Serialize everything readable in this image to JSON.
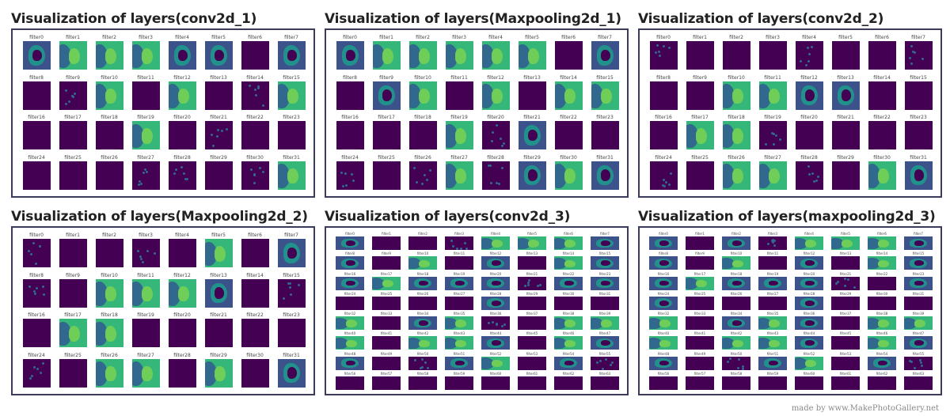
{
  "colors": {
    "empty": "#440154",
    "bright": "#35b779",
    "mid": "#31688e",
    "teal": "#21918c",
    "dark": "#3b528b",
    "light": "#6ece58"
  },
  "panels": [
    {
      "title": "Visualization of layers(conv2d_1)",
      "labels": [
        "filter0",
        "filter1",
        "filter2",
        "filter3",
        "filter4",
        "filter5",
        "filter6",
        "filter7",
        "filter8",
        "filter9",
        "filter10",
        "filter11",
        "filter12",
        "filter13",
        "filter14",
        "filter15",
        "filter16",
        "filter17",
        "filter18",
        "filter19",
        "filter20",
        "filter21",
        "filter22",
        "filter23",
        "filter24",
        "filter25",
        "filter26",
        "filter27",
        "filter28",
        "filter29",
        "filter30",
        "filter31"
      ],
      "levels": "23332202,01303013,00030100,00011013"
    },
    {
      "title": "Visualization of layers(Maxpooling2d_1)",
      "labels": [
        "filter0",
        "filter1",
        "filter2",
        "filter3",
        "filter4",
        "filter5",
        "filter6",
        "filter7",
        "filter8",
        "filter9",
        "filter10",
        "filter11",
        "filter12",
        "filter13",
        "filter14",
        "filter15",
        "filter16",
        "filter17",
        "filter18",
        "filter19",
        "filter20",
        "filter21",
        "filter22",
        "filter23",
        "filter24",
        "filter25",
        "filter26",
        "filter27",
        "filter28",
        "filter29",
        "filter30",
        "filter31"
      ],
      "levels": "23333302,02303033,00031200,10131232"
    },
    {
      "title": "Visualization of layers(conv2d_2)",
      "labels": [
        "filter0",
        "filter1",
        "filter2",
        "filter3",
        "filter4",
        "filter5",
        "filter6",
        "filter7",
        "filter8",
        "filter9",
        "filter10",
        "filter11",
        "filter12",
        "filter13",
        "filter14",
        "filter15",
        "filter16",
        "filter17",
        "filter18",
        "filter19",
        "filter20",
        "filter21",
        "filter22",
        "filter23",
        "filter24",
        "filter25",
        "filter26",
        "filter27",
        "filter28",
        "filter29",
        "filter30",
        "filter31"
      ],
      "levels": "10001001,00332200,03310000,10331032"
    },
    {
      "title": "Visualization of layers(Maxpooling2d_2)",
      "labels": [
        "filter0",
        "filter1",
        "filter2",
        "filter3",
        "filter4",
        "filter5",
        "filter6",
        "filter7",
        "filter8",
        "filter9",
        "filter10",
        "filter11",
        "filter12",
        "filter13",
        "filter14",
        "filter15",
        "filter16",
        "filter17",
        "filter18",
        "filter19",
        "filter20",
        "filter21",
        "filter22",
        "filter23",
        "filter24",
        "filter25",
        "filter26",
        "filter27",
        "filter28",
        "filter29",
        "filter30",
        "filter31"
      ],
      "levels": "10010302,10333201,03300000,10330302"
    },
    {
      "title": "Visualization of layers(conv2d_3)",
      "labels": [
        "filter0",
        "filter1",
        "filter2",
        "filter3",
        "filter4",
        "filter5",
        "filter6",
        "filter7",
        "filter8",
        "filter9",
        "filter10",
        "filter11",
        "filter12",
        "filter13",
        "filter14",
        "filter15",
        "filter16",
        "filter17",
        "filter18",
        "filter19",
        "filter20",
        "filter21",
        "filter22",
        "filter23",
        "filter24",
        "filter25",
        "filter26",
        "filter27",
        "filter28",
        "filter29",
        "filter30",
        "filter31",
        "filter32",
        "filter33",
        "filter34",
        "filter35",
        "filter36",
        "filter37",
        "filter38",
        "filter39",
        "filter40",
        "filter41",
        "filter42",
        "filter43",
        "filter44",
        "filter45",
        "filter46",
        "filter47",
        "filter48",
        "filter49",
        "filter50",
        "filter51",
        "filter52",
        "filter53",
        "filter54",
        "filter55",
        "filter56",
        "filter57",
        "filter58",
        "filter59",
        "filter60",
        "filter61",
        "filter62",
        "filter63"
      ],
      "levels": "20013332,20302032,23222122,00002000,30231033,30332032,20123021,00000000"
    },
    {
      "title": "Visualization of layers(maxpooling2d_3)",
      "labels": [
        "filter0",
        "filter1",
        "filter2",
        "filter3",
        "filter4",
        "filter5",
        "filter6",
        "filter7",
        "filter8",
        "filter9",
        "filter10",
        "filter11",
        "filter12",
        "filter13",
        "filter14",
        "filter15",
        "filter16",
        "filter17",
        "filter18",
        "filter19",
        "filter20",
        "filter21",
        "filter22",
        "filter23",
        "filter24",
        "filter25",
        "filter26",
        "filter27",
        "filter28",
        "filter29",
        "filter30",
        "filter31",
        "filter32",
        "filter33",
        "filter34",
        "filter35",
        "filter36",
        "filter37",
        "filter38",
        "filter39",
        "filter40",
        "filter41",
        "filter42",
        "filter43",
        "filter44",
        "filter45",
        "filter46",
        "filter47",
        "filter48",
        "filter49",
        "filter50",
        "filter51",
        "filter52",
        "filter53",
        "filter54",
        "filter55",
        "filter56",
        "filter57",
        "filter58",
        "filter59",
        "filter60",
        "filter61",
        "filter62",
        "filter63"
      ],
      "levels": "20213332,20302032,23222102,20002000,30232033,30332032,20123021,00000000"
    }
  ],
  "watermark": "made by www.MakePhotoGallery.net"
}
